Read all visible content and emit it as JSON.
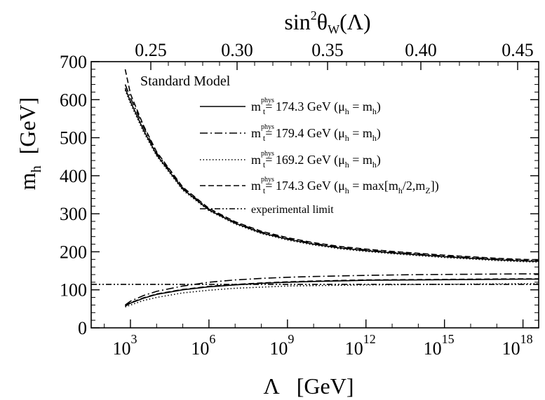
{
  "chart_data": {
    "type": "line",
    "model_label": "Standard Model",
    "top_axis": {
      "title_main": "sin",
      "title_sup": "2",
      "title_theta": "θ",
      "title_sub": "W",
      "title_arg": "(Λ)",
      "ticks": [
        "0.25",
        "0.30",
        "0.35",
        "0.40",
        "0.45"
      ]
    },
    "x_axis": {
      "title_symbol": "Λ",
      "title_unit": "[GeV]",
      "tick_base": "10",
      "tick_exponents": [
        "3",
        "6",
        "9",
        "12",
        "15",
        "18"
      ],
      "scale": "log10",
      "xlim": [
        1.5,
        18.6
      ]
    },
    "y_axis": {
      "title_main": "m",
      "title_sub": "h",
      "title_unit": "[GeV]",
      "ticks": [
        "0",
        "100",
        "200",
        "300",
        "400",
        "500",
        "600",
        "700"
      ],
      "ylim": [
        0,
        700
      ]
    },
    "series": [
      {
        "name": "m_t^phys = 174.3 GeV (μ_h = m_h)",
        "legend": {
          "sym": "m",
          "sup": "phys",
          "sub": "t",
          "value": "= 174.3 GeV (",
          "mu": "μ",
          "mu_sub": "h",
          "eq": " = m",
          "rhs_sub": "h",
          "close": ")"
        },
        "style": "solid",
        "upper": {
          "log10_lambda": [
            2.8,
            3.0,
            3.5,
            4.0,
            5.0,
            6.0,
            7.0,
            8.0,
            9.0,
            10.0,
            11.0,
            12.0,
            13.0,
            14.0,
            15.0,
            16.0,
            17.0,
            18.0,
            18.6
          ],
          "m_h": [
            630,
            595,
            520,
            455,
            365,
            310,
            275,
            250,
            233,
            220,
            210,
            203,
            197,
            192,
            187,
            183,
            179,
            176,
            175
          ]
        },
        "lower": {
          "log10_lambda": [
            2.8,
            3.0,
            3.5,
            4.0,
            5.0,
            6.0,
            7.0,
            8.0,
            9.0,
            10.0,
            12.0,
            14.0,
            16.0,
            18.0,
            18.6
          ],
          "m_h": [
            57,
            65,
            78,
            88,
            100,
            108,
            113,
            117,
            120,
            122,
            125,
            126,
            127,
            128,
            128
          ]
        }
      },
      {
        "name": "m_t^phys = 179.4 GeV (μ_h = m_h)",
        "legend": {
          "sym": "m",
          "sup": "phys",
          "sub": "t",
          "value": "= 179.4 GeV (",
          "mu": "μ",
          "mu_sub": "h",
          "eq": " = m",
          "rhs_sub": "h",
          "close": ")"
        },
        "style": "dashdot",
        "upper": {
          "log10_lambda": [
            2.8,
            3.0,
            3.5,
            4.0,
            5.0,
            6.0,
            7.0,
            8.0,
            9.0,
            10.0,
            11.0,
            12.0,
            13.0,
            14.0,
            15.0,
            16.0,
            17.0,
            18.0,
            18.6
          ],
          "m_h": [
            640,
            605,
            528,
            460,
            368,
            312,
            277,
            252,
            235,
            222,
            212,
            205,
            199,
            194,
            189,
            185,
            181,
            178,
            177
          ]
        },
        "lower": {
          "log10_lambda": [
            2.8,
            3.0,
            3.5,
            4.0,
            5.0,
            6.0,
            7.0,
            8.0,
            9.0,
            10.0,
            12.0,
            14.0,
            16.0,
            18.0,
            18.6
          ],
          "m_h": [
            60,
            70,
            85,
            96,
            110,
            120,
            126,
            130,
            133,
            135,
            138,
            140,
            141,
            142,
            142
          ]
        }
      },
      {
        "name": "m_t^phys = 169.2 GeV (μ_h = m_h)",
        "legend": {
          "sym": "m",
          "sup": "phys",
          "sub": "t",
          "value": "= 169.2 GeV (",
          "mu": "μ",
          "mu_sub": "h",
          "eq": " = m",
          "rhs_sub": "h",
          "close": ")"
        },
        "style": "dotted",
        "upper": {
          "log10_lambda": [
            2.8,
            3.0,
            3.5,
            4.0,
            5.0,
            6.0,
            7.0,
            8.0,
            9.0,
            10.0,
            11.0,
            12.0,
            13.0,
            14.0,
            15.0,
            16.0,
            17.0,
            18.0,
            18.6
          ],
          "m_h": [
            625,
            590,
            515,
            452,
            362,
            308,
            273,
            248,
            231,
            218,
            208,
            201,
            195,
            190,
            185,
            181,
            177,
            174,
            173
          ]
        },
        "lower": {
          "log10_lambda": [
            2.8,
            3.0,
            3.5,
            4.0,
            5.0,
            6.0,
            7.0,
            8.0,
            9.0,
            10.0,
            12.0,
            14.0,
            16.0,
            18.0,
            18.6
          ],
          "m_h": [
            55,
            60,
            72,
            80,
            92,
            99,
            104,
            107,
            110,
            111,
            113,
            114,
            115,
            116,
            116
          ]
        }
      },
      {
        "name": "m_t^phys = 174.3 GeV (μ_h = max[m_h/2,m_Z])",
        "legend": {
          "sym": "m",
          "sup": "phys",
          "sub": "t",
          "value": "= 174.3 GeV (",
          "mu": "μ",
          "mu_sub": "h",
          "eq": " = max[m",
          "rhs_sub": "h",
          "close": "/2,m",
          "tail_sub": "Z",
          "tail": "])"
        },
        "style": "dashed",
        "upper": {
          "log10_lambda": [
            2.8,
            3.0,
            3.5,
            4.0,
            5.0,
            6.0,
            7.0,
            8.0,
            9.0,
            10.0,
            11.0,
            12.0,
            13.0,
            14.0,
            15.0,
            16.0,
            17.0,
            18.0,
            18.6
          ],
          "m_h": [
            680,
            615,
            532,
            463,
            370,
            314,
            279,
            254,
            237,
            224,
            214,
            207,
            201,
            196,
            191,
            187,
            183,
            180,
            179
          ]
        },
        "lower": {
          "log10_lambda": [
            2.8,
            3.0,
            3.5,
            4.0,
            5.0,
            6.0,
            7.0,
            8.0,
            9.0,
            10.0,
            12.0,
            14.0,
            16.0,
            18.0,
            18.6
          ],
          "m_h": [
            58,
            66,
            79,
            89,
            101,
            109,
            114,
            118,
            121,
            123,
            126,
            127,
            128,
            129,
            129
          ]
        }
      },
      {
        "name": "experimental limit",
        "legend": {
          "value": "experimental limit"
        },
        "style": "dashdotdot",
        "constant": 114.4
      }
    ]
  }
}
